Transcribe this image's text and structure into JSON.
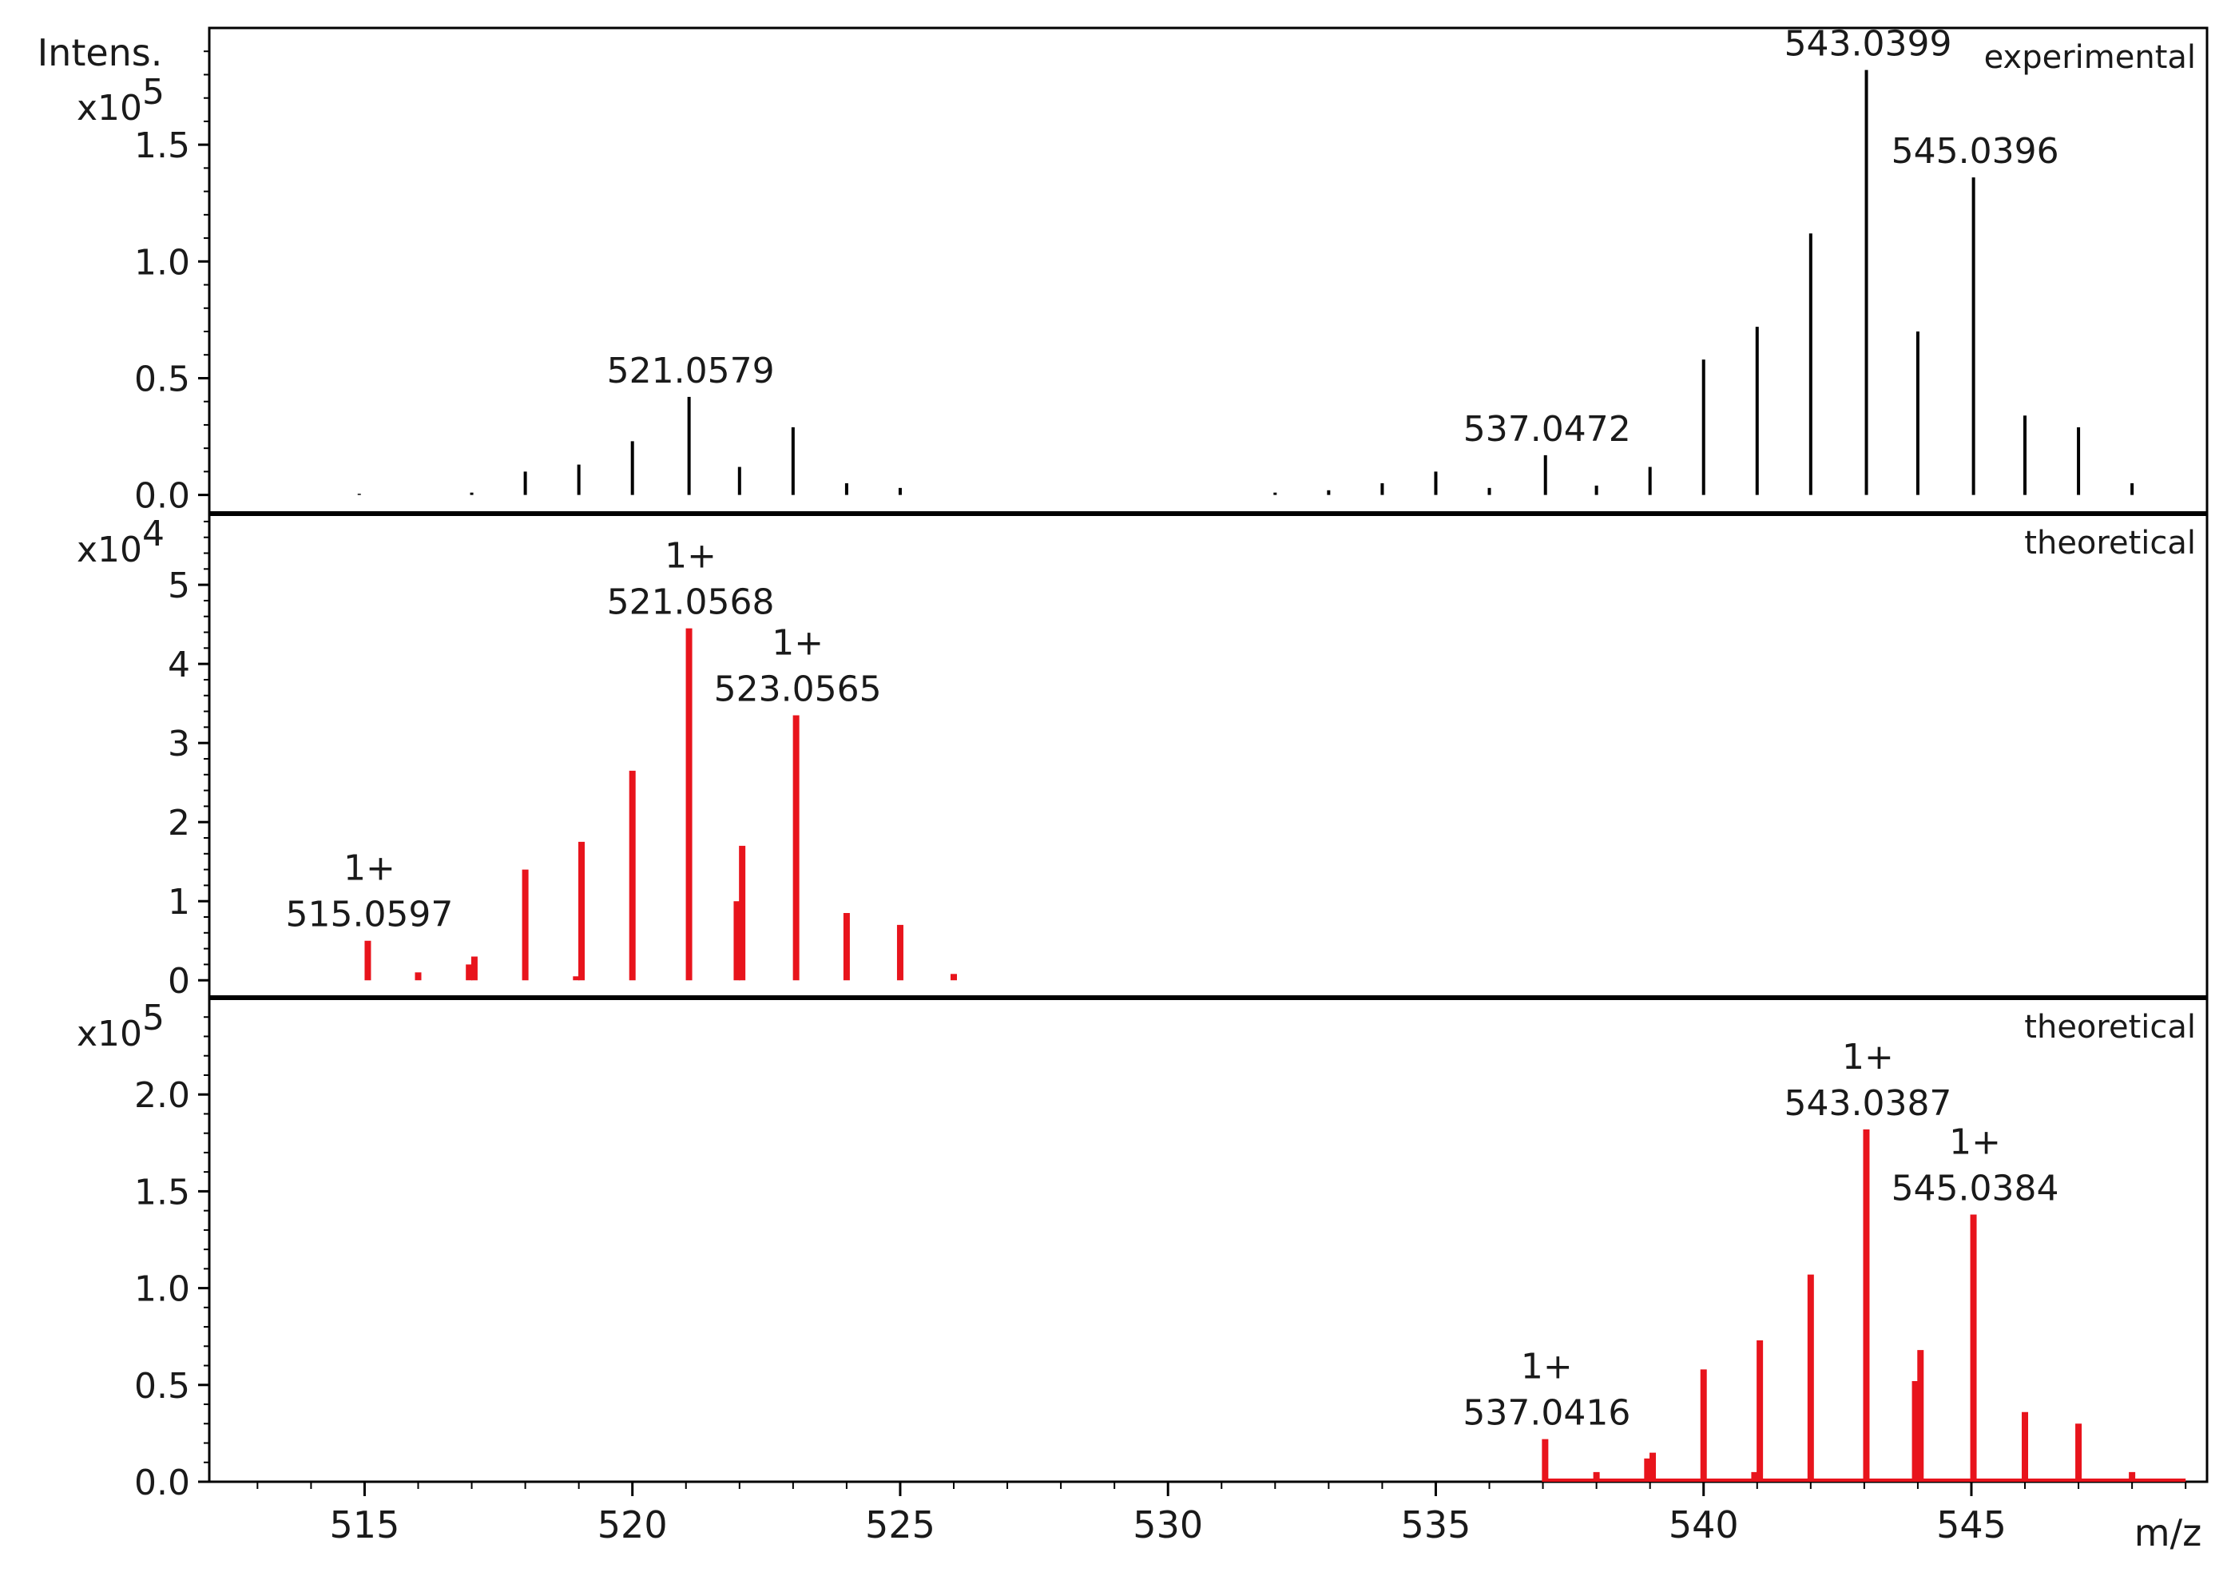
{
  "chart_data": {
    "type": "bar",
    "title": "",
    "xlabel": "m/z",
    "ylabel": "Intens.",
    "xlim": [
      512.1,
      549.4
    ],
    "x_ticks": [
      "515",
      "520",
      "525",
      "530",
      "535",
      "540",
      "545"
    ],
    "grid": false,
    "panels": [
      {
        "name": "experimental",
        "label": "experimental",
        "color": "#000000",
        "multiplier_base": "x10",
        "multiplier_exp": "5",
        "scale": 100000,
        "ylim": [
          -0.08,
          2.0
        ],
        "y_ticks": [
          "0.0",
          "0.5",
          "1.0",
          "1.5"
        ],
        "peaks": {
          "x": [
            514.9,
            517.0,
            518.0,
            519.0,
            520.0,
            521.0579,
            522.0,
            523.0,
            524.0,
            525.0,
            532.0,
            533.0,
            534.0,
            535.0,
            536.0,
            537.0472,
            538.0,
            539.0,
            540.0,
            541.0,
            542.0,
            543.0399,
            544.0,
            545.0396,
            546.0,
            547.0,
            548.0
          ],
          "y": [
            0.005,
            0.01,
            0.1,
            0.13,
            0.23,
            0.42,
            0.12,
            0.29,
            0.05,
            0.03,
            0.01,
            0.02,
            0.05,
            0.1,
            0.03,
            0.17,
            0.04,
            0.12,
            0.58,
            0.72,
            1.12,
            1.82,
            0.7,
            1.36,
            0.34,
            0.29,
            0.05
          ]
        },
        "annotations": [
          {
            "x": 521.0579,
            "y": 0.42,
            "text": "521.0579"
          },
          {
            "x": 537.0472,
            "y": 0.17,
            "text": "537.0472"
          },
          {
            "x": 543.0399,
            "y": 1.82,
            "text": "543.0399"
          },
          {
            "x": 545.0396,
            "y": 1.36,
            "text": "545.0396"
          }
        ]
      },
      {
        "name": "theoretical-1",
        "label": "theoretical",
        "color": "#e8141c",
        "multiplier_base": "x10",
        "multiplier_exp": "4",
        "scale": 10000,
        "ylim": [
          -0.22,
          5.9
        ],
        "y_ticks": [
          "0",
          "1",
          "2",
          "3",
          "4",
          "5"
        ],
        "peaks": {
          "x": [
            515.0597,
            516.0,
            516.95,
            517.05,
            518.0,
            518.95,
            519.05,
            520.0,
            521.0568,
            521.95,
            522.05,
            523.0565,
            524.0,
            525.0,
            526.0
          ],
          "y": [
            0.5,
            0.1,
            0.2,
            0.3,
            1.4,
            0.05,
            1.75,
            2.65,
            4.45,
            1.0,
            1.7,
            3.35,
            0.85,
            0.7,
            0.08
          ]
        },
        "annotations": [
          {
            "x": 515.0597,
            "y": 0.5,
            "charge": "1+",
            "text": "515.0597"
          },
          {
            "x": 521.0568,
            "y": 4.45,
            "charge": "1+",
            "text": "521.0568"
          },
          {
            "x": 523.0565,
            "y": 3.35,
            "charge": "1+",
            "text": "523.0565"
          }
        ]
      },
      {
        "name": "theoretical-2",
        "label": "theoretical",
        "color": "#e8141c",
        "multiplier_base": "x10",
        "multiplier_exp": "5",
        "scale": 100000,
        "ylim": [
          0.0,
          2.5
        ],
        "y_ticks": [
          "0.0",
          "0.5",
          "1.0",
          "1.5",
          "2.0"
        ],
        "peaks": {
          "x": [
            537.0416,
            538.0,
            538.95,
            539.05,
            540.0,
            540.95,
            541.05,
            542.0,
            543.0387,
            543.95,
            544.05,
            545.0384,
            546.0,
            547.0,
            548.0
          ],
          "y": [
            0.22,
            0.05,
            0.12,
            0.15,
            0.58,
            0.05,
            0.73,
            1.07,
            1.82,
            0.52,
            0.68,
            1.38,
            0.36,
            0.3,
            0.05
          ]
        },
        "baseline": [
          537.0,
          549.0
        ],
        "annotations": [
          {
            "x": 537.0416,
            "y": 0.22,
            "charge": "1+",
            "text": "537.0416"
          },
          {
            "x": 543.0387,
            "y": 1.82,
            "charge": "1+",
            "text": "543.0387"
          },
          {
            "x": 545.0384,
            "y": 1.38,
            "charge": "1+",
            "text": "545.0384"
          }
        ]
      }
    ]
  }
}
